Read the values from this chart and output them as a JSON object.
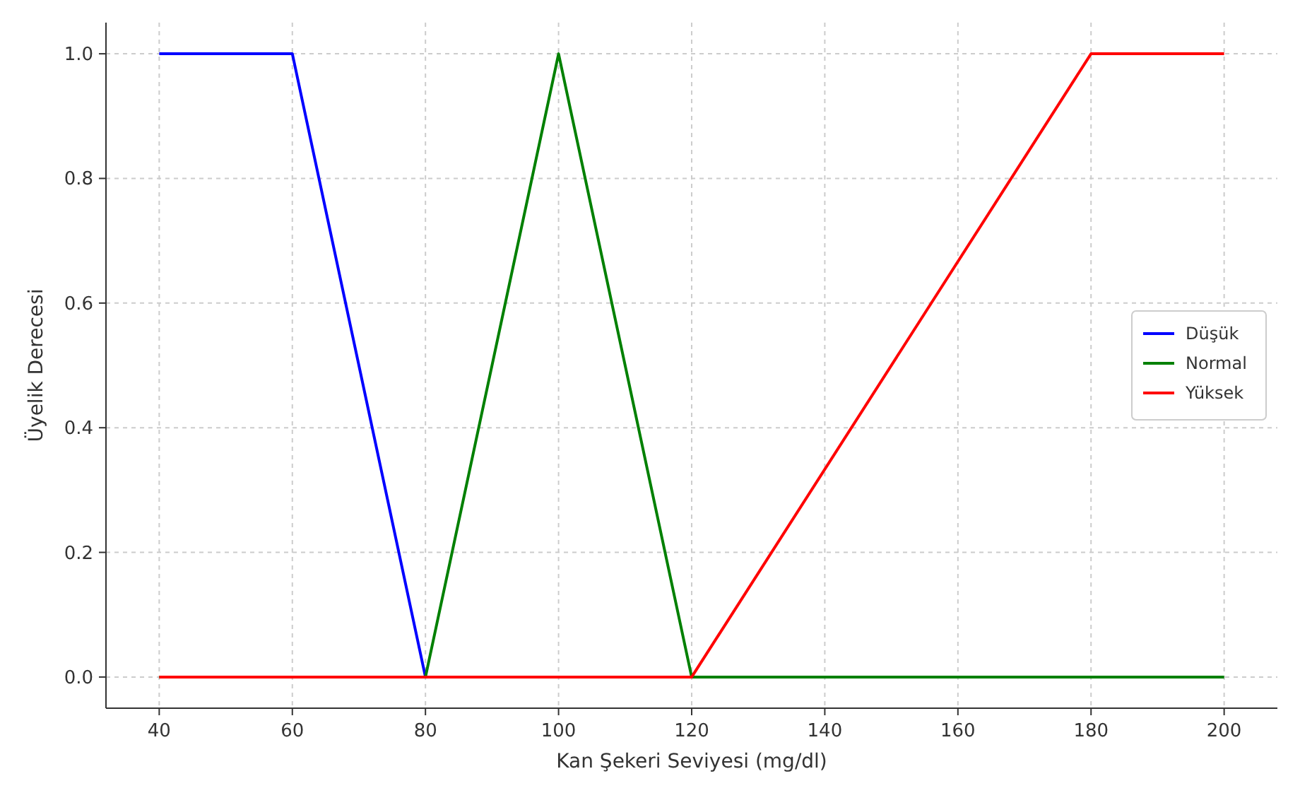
{
  "chart_data": {
    "type": "line",
    "xlabel": "Kan Şekeri Seviyesi (mg/dl)",
    "ylabel": "Üyelik Derecesi",
    "xlim": [
      32,
      208
    ],
    "xticks": [
      40,
      60,
      80,
      100,
      120,
      140,
      160,
      180,
      200
    ],
    "ylim": [
      -0.05,
      1.05
    ],
    "yticks": [
      {
        "value": 0,
        "label": "0.0"
      },
      {
        "value": 0.2,
        "label": "0.2"
      },
      {
        "value": 0.4,
        "label": "0.4"
      },
      {
        "value": 0.6,
        "label": "0.6"
      },
      {
        "value": 0.8,
        "label": "0.8"
      },
      {
        "value": 1,
        "label": "1.0"
      }
    ],
    "grid": true,
    "legend": "right",
    "marker": "none",
    "line_style": "solid",
    "series": [
      {
        "name": "Düşük",
        "color": "#0000ff",
        "x": [
          40,
          60,
          80
        ],
        "values": [
          1,
          1,
          0
        ]
      },
      {
        "name": "Normal",
        "color": "#008000",
        "x": [
          40,
          80,
          100,
          120,
          200
        ],
        "values": [
          0,
          0,
          1,
          0,
          0
        ]
      },
      {
        "name": "Yüksek",
        "color": "#ff0000",
        "x": [
          40,
          120,
          180,
          200
        ],
        "values": [
          0,
          0,
          1,
          1
        ]
      }
    ]
  }
}
